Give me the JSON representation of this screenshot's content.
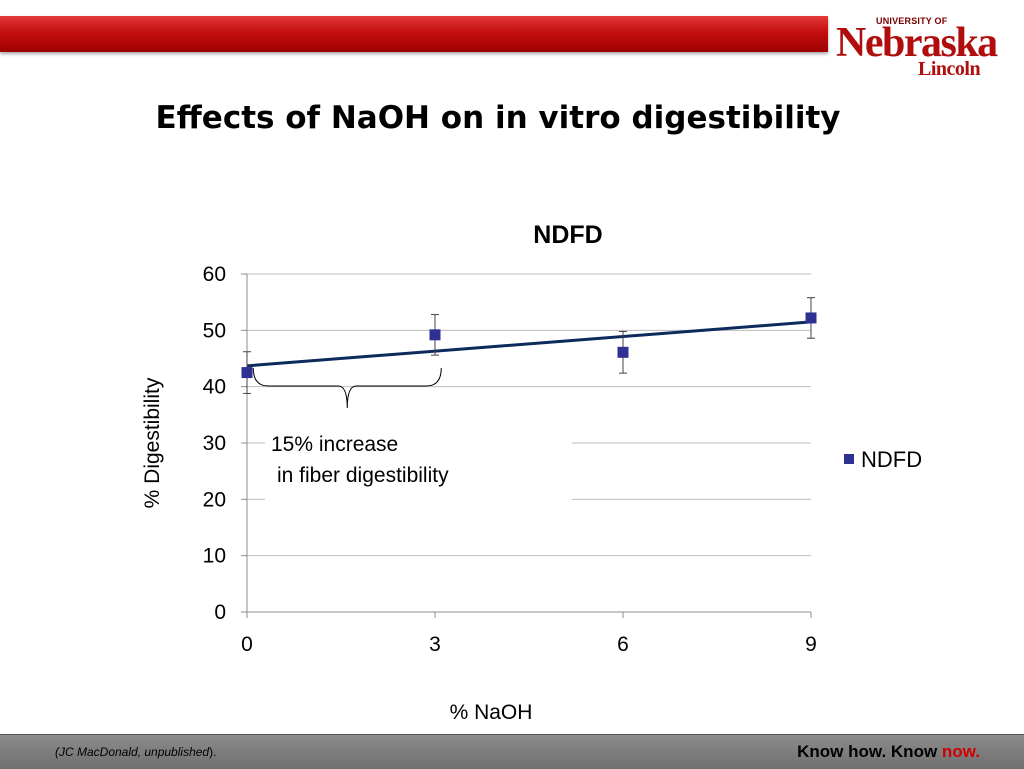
{
  "slide": {
    "title": "Effects of NaOH on in vitro digestibility"
  },
  "logo": {
    "university": "UNIVERSITY OF",
    "name": "Nebraska",
    "campus": "Lincoln"
  },
  "chart_data": {
    "type": "scatter",
    "title": "NDFD",
    "xlabel": "% NaOH",
    "ylabel": "% Digestibility",
    "x_ticks": [
      0,
      3,
      6,
      9
    ],
    "y_ticks": [
      0,
      10,
      20,
      30,
      40,
      50,
      60
    ],
    "xlim": [
      0,
      9
    ],
    "ylim": [
      0,
      60
    ],
    "grid": "horizontal",
    "legend_position": "right",
    "series": [
      {
        "name": "NDFD",
        "color": "#2e3192",
        "marker": "square",
        "x": [
          0,
          3,
          6,
          9
        ],
        "y": [
          42.5,
          49.2,
          46.1,
          52.2
        ],
        "error": [
          3.7,
          3.6,
          3.7,
          3.6
        ]
      }
    ],
    "trendline": {
      "type": "linear",
      "x": [
        0,
        9
      ],
      "y": [
        43.7,
        51.5
      ],
      "color": "#0d2a5c"
    },
    "annotation": {
      "line1": "15% increase",
      "line2": "in fiber digestibility",
      "brace_x": [
        0.1,
        3.1
      ]
    }
  },
  "footer": {
    "citation_prefix": "(JC MacDonald, unpublished",
    "citation_suffix": ").",
    "tagline_main": "Know how. Know ",
    "tagline_accent": "now."
  }
}
